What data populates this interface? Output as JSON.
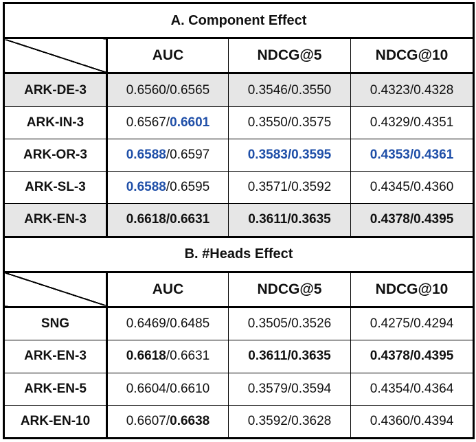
{
  "section_a": {
    "title": "A. Component Effect",
    "columns": [
      "AUC",
      "NDCG@5",
      "NDCG@10"
    ],
    "rows": [
      {
        "name": "ARK-DE-3",
        "shaded": true,
        "cells": [
          [
            {
              "t": "0.6560/0.6565",
              "s": "n"
            }
          ],
          [
            {
              "t": "0.3546/0.3550",
              "s": "n"
            }
          ],
          [
            {
              "t": "0.4323/0.4328",
              "s": "n"
            }
          ]
        ]
      },
      {
        "name": "ARK-IN-3",
        "shaded": false,
        "cells": [
          [
            {
              "t": "0.6567/",
              "s": "n"
            },
            {
              "t": "0.6601",
              "s": "blue"
            }
          ],
          [
            {
              "t": "0.3550/0.3575",
              "s": "n"
            }
          ],
          [
            {
              "t": "0.4329/0.4351",
              "s": "n"
            }
          ]
        ]
      },
      {
        "name": "ARK-OR-3",
        "shaded": false,
        "cells": [
          [
            {
              "t": "0.6588",
              "s": "blue"
            },
            {
              "t": "/0.6597",
              "s": "n"
            }
          ],
          [
            {
              "t": "0.3583/0.3595",
              "s": "blue"
            }
          ],
          [
            {
              "t": "0.4353/0.4361",
              "s": "blue"
            }
          ]
        ]
      },
      {
        "name": "ARK-SL-3",
        "shaded": false,
        "cells": [
          [
            {
              "t": "0.6588",
              "s": "blue"
            },
            {
              "t": "/0.6595",
              "s": "n"
            }
          ],
          [
            {
              "t": "0.3571/0.3592",
              "s": "n"
            }
          ],
          [
            {
              "t": "0.4345/0.4360",
              "s": "n"
            }
          ]
        ]
      },
      {
        "name": "ARK-EN-3",
        "shaded": true,
        "cells": [
          [
            {
              "t": "0.6618/0.6631",
              "s": "b"
            }
          ],
          [
            {
              "t": "0.3611/0.3635",
              "s": "b"
            }
          ],
          [
            {
              "t": "0.4378/0.4395",
              "s": "b"
            }
          ]
        ]
      }
    ]
  },
  "section_b": {
    "title": "B. #Heads Effect",
    "columns": [
      "AUC",
      "NDCG@5",
      "NDCG@10"
    ],
    "rows": [
      {
        "name": "SNG",
        "shaded": false,
        "cells": [
          [
            {
              "t": "0.6469/0.6485",
              "s": "n"
            }
          ],
          [
            {
              "t": "0.3505/0.3526",
              "s": "n"
            }
          ],
          [
            {
              "t": "0.4275/0.4294",
              "s": "n"
            }
          ]
        ]
      },
      {
        "name": "ARK-EN-3",
        "shaded": false,
        "cells": [
          [
            {
              "t": "0.6618",
              "s": "b"
            },
            {
              "t": "/0.6631",
              "s": "n"
            }
          ],
          [
            {
              "t": "0.3611/0.3635",
              "s": "b"
            }
          ],
          [
            {
              "t": "0.4378/0.4395",
              "s": "b"
            }
          ]
        ]
      },
      {
        "name": "ARK-EN-5",
        "shaded": false,
        "cells": [
          [
            {
              "t": "0.6604/0.6610",
              "s": "n"
            }
          ],
          [
            {
              "t": "0.3579/0.3594",
              "s": "n"
            }
          ],
          [
            {
              "t": "0.4354/0.4364",
              "s": "n"
            }
          ]
        ]
      },
      {
        "name": "ARK-EN-10",
        "shaded": false,
        "cells": [
          [
            {
              "t": "0.6607/",
              "s": "n"
            },
            {
              "t": "0.6638",
              "s": "b"
            }
          ],
          [
            {
              "t": "0.3592/0.3628",
              "s": "n"
            }
          ],
          [
            {
              "t": "0.4360/0.4394",
              "s": "n"
            }
          ]
        ]
      }
    ]
  },
  "colors": {
    "highlight_blue": "#1f4fa8",
    "shade_gray": "#e6e6e6"
  }
}
